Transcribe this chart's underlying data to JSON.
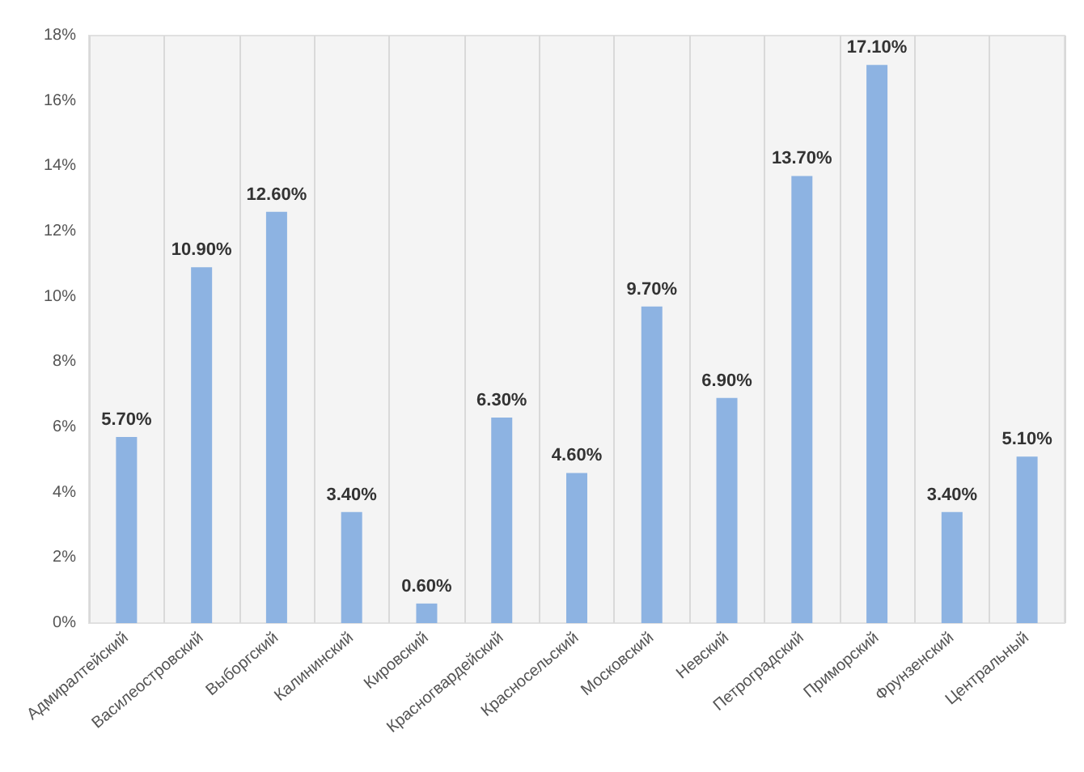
{
  "chart_data": {
    "type": "bar",
    "categories": [
      "Адмиралтейский",
      "Василеостровский",
      "Выборгский",
      "Калининский",
      "Кировский",
      "Красногвардейский",
      "Красносельский",
      "Московский",
      "Невский",
      "Петроградский",
      "Приморский",
      "Фрунзенский",
      "Центральный"
    ],
    "values": [
      5.7,
      10.9,
      12.6,
      3.4,
      0.6,
      6.3,
      4.6,
      9.7,
      6.9,
      13.7,
      17.1,
      3.4,
      5.1
    ],
    "value_labels": [
      "5.70%",
      "10.90%",
      "12.60%",
      "3.40%",
      "0.60%",
      "6.30%",
      "4.60%",
      "9.70%",
      "6.90%",
      "13.70%",
      "17.10%",
      "3.40%",
      "5.10%"
    ],
    "color": "#8db3e2",
    "ylim": [
      0,
      18
    ],
    "yticks": [
      {
        "value": 0,
        "label": "0%"
      },
      {
        "value": 2,
        "label": "2%"
      },
      {
        "value": 4,
        "label": "4%"
      },
      {
        "value": 6,
        "label": "6%"
      },
      {
        "value": 8,
        "label": "8%"
      },
      {
        "value": 10,
        "label": "10%"
      },
      {
        "value": 12,
        "label": "12%"
      },
      {
        "value": 14,
        "label": "14%"
      },
      {
        "value": 16,
        "label": "16%"
      },
      {
        "value": 18,
        "label": "18%"
      }
    ],
    "grid": "x"
  }
}
